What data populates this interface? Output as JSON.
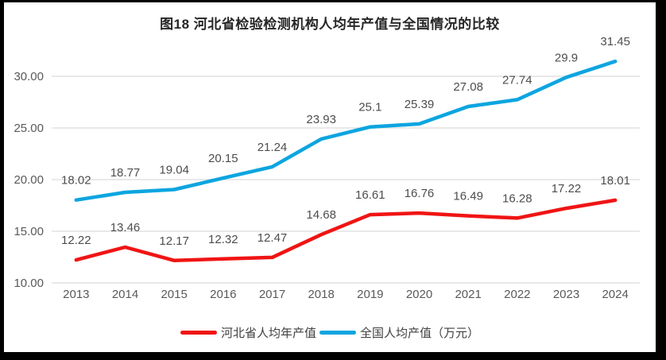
{
  "title": "图18 河北省检验检测机构人均年产值与全国情况的比较",
  "chart_data": {
    "type": "line",
    "categories": [
      "2013",
      "2014",
      "2015",
      "2016",
      "2017",
      "2018",
      "2019",
      "2020",
      "2021",
      "2022",
      "2023",
      "2024"
    ],
    "series": [
      {
        "name": "河北省人均年产值",
        "color": "#f01414",
        "values": [
          12.22,
          13.46,
          12.17,
          12.32,
          12.47,
          14.68,
          16.61,
          16.76,
          16.49,
          16.28,
          17.22,
          18.01
        ]
      },
      {
        "name": "全国人均产值（万元）",
        "color": "#0da5e0",
        "values": [
          18.02,
          18.77,
          19.04,
          20.15,
          21.24,
          23.93,
          25.1,
          25.39,
          27.08,
          27.74,
          29.9,
          31.45
        ]
      }
    ],
    "yticks": [
      {
        "value": 10,
        "label": "10.00"
      },
      {
        "value": 15,
        "label": "15.00"
      },
      {
        "value": 20,
        "label": "20.00"
      },
      {
        "value": 25,
        "label": "25.00"
      },
      {
        "value": 30,
        "label": "30.00"
      }
    ],
    "ylim": [
      10,
      32.5
    ],
    "grid": true,
    "legend_position": "bottom",
    "data_labels": true
  },
  "colors": {
    "gridline": "#dcdcdc",
    "axis_text": "#595959",
    "data_label_text": "#4d4d4d",
    "frame_border": "#000000",
    "background": "#ffffff"
  }
}
